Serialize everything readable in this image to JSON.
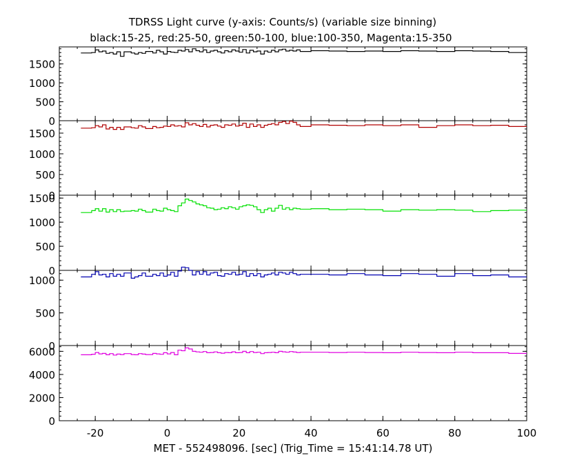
{
  "title": "TDRSS Light curve (y-axis: Counts/s) (variable size binning)",
  "subtitle": "black:15-25, red:25-50, green:50-100, blue:100-350, Magenta:15-350",
  "xlabel": "MET - 552498096. [sec] (Trig_Time = 15:41:14.78 UT)",
  "chart_data": [
    {
      "type": "line",
      "name": "black:15-25",
      "color": "#000000",
      "xlim": [
        -30,
        100
      ],
      "ylim": [
        0,
        1950
      ],
      "yticks": [
        0,
        500,
        1000,
        1500
      ],
      "x": [
        -24,
        -21,
        -20,
        -19,
        -18,
        -17,
        -16,
        -15,
        -14,
        -13,
        -12,
        -10,
        -9,
        -8,
        -7,
        -6,
        -4,
        -3,
        -2,
        -1,
        0,
        1,
        2,
        3,
        4,
        5,
        6,
        7,
        8,
        9,
        10,
        11,
        12,
        13,
        14,
        15,
        16,
        17,
        18,
        19,
        20,
        21,
        22,
        23,
        24,
        25,
        26,
        27,
        28,
        29,
        30,
        31,
        32,
        33,
        34,
        35,
        36,
        37,
        40,
        45,
        50,
        55,
        60,
        65,
        70,
        75,
        80,
        85,
        90,
        95,
        100
      ],
      "values": [
        1790,
        1800,
        1870,
        1820,
        1840,
        1780,
        1800,
        1760,
        1820,
        1700,
        1820,
        1790,
        1760,
        1800,
        1780,
        1830,
        1790,
        1860,
        1820,
        1760,
        1830,
        1810,
        1800,
        1860,
        1840,
        1880,
        1820,
        1900,
        1850,
        1820,
        1870,
        1800,
        1840,
        1860,
        1820,
        1790,
        1850,
        1820,
        1870,
        1840,
        1810,
        1880,
        1790,
        1860,
        1820,
        1840,
        1760,
        1840,
        1810,
        1860,
        1820,
        1870,
        1890,
        1840,
        1860,
        1840,
        1870,
        1830,
        1850,
        1840,
        1830,
        1840,
        1830,
        1850,
        1840,
        1830,
        1850,
        1840,
        1830,
        1800,
        1800
      ]
    },
    {
      "type": "line",
      "name": "red:25-50",
      "color": "#b00000",
      "xlim": [
        -30,
        100
      ],
      "ylim": [
        0,
        1800
      ],
      "yticks": [
        0,
        500,
        1000,
        1500
      ],
      "x": [
        -24,
        -21,
        -20,
        -19,
        -18,
        -17,
        -16,
        -15,
        -14,
        -13,
        -12,
        -10,
        -9,
        -8,
        -7,
        -6,
        -4,
        -3,
        -2,
        -1,
        0,
        1,
        2,
        3,
        4,
        5,
        6,
        7,
        8,
        9,
        10,
        11,
        12,
        13,
        14,
        15,
        16,
        17,
        18,
        19,
        20,
        21,
        22,
        23,
        24,
        25,
        26,
        27,
        28,
        29,
        30,
        31,
        32,
        33,
        34,
        35,
        36,
        37,
        40,
        45,
        50,
        55,
        60,
        65,
        70,
        75,
        80,
        85,
        90,
        95,
        100
      ],
      "values": [
        1620,
        1630,
        1680,
        1650,
        1700,
        1600,
        1640,
        1590,
        1640,
        1590,
        1650,
        1630,
        1620,
        1680,
        1650,
        1610,
        1660,
        1630,
        1640,
        1670,
        1660,
        1700,
        1670,
        1680,
        1650,
        1750,
        1700,
        1730,
        1690,
        1660,
        1710,
        1650,
        1690,
        1700,
        1670,
        1640,
        1700,
        1690,
        1720,
        1670,
        1690,
        1740,
        1640,
        1720,
        1660,
        1700,
        1640,
        1690,
        1710,
        1730,
        1700,
        1760,
        1780,
        1730,
        1790,
        1760,
        1700,
        1660,
        1700,
        1690,
        1680,
        1700,
        1680,
        1700,
        1640,
        1680,
        1700,
        1680,
        1690,
        1660,
        1660
      ]
    },
    {
      "type": "line",
      "name": "green:50-100",
      "color": "#00e000",
      "xlim": [
        -30,
        100
      ],
      "ylim": [
        0,
        1560
      ],
      "yticks": [
        0,
        500,
        1000,
        1500
      ],
      "x": [
        -24,
        -21,
        -20,
        -19,
        -18,
        -17,
        -16,
        -15,
        -14,
        -13,
        -12,
        -10,
        -9,
        -8,
        -7,
        -6,
        -4,
        -3,
        -2,
        -1,
        0,
        1,
        2,
        3,
        4,
        5,
        6,
        7,
        8,
        9,
        10,
        11,
        12,
        13,
        14,
        15,
        16,
        17,
        18,
        19,
        20,
        21,
        22,
        23,
        24,
        25,
        26,
        27,
        28,
        29,
        30,
        31,
        32,
        33,
        34,
        35,
        36,
        37,
        40,
        45,
        50,
        55,
        60,
        65,
        70,
        75,
        80,
        85,
        90,
        95,
        100
      ],
      "values": [
        1200,
        1240,
        1280,
        1230,
        1280,
        1210,
        1260,
        1220,
        1260,
        1220,
        1230,
        1240,
        1230,
        1270,
        1240,
        1210,
        1270,
        1240,
        1230,
        1290,
        1260,
        1240,
        1220,
        1340,
        1400,
        1480,
        1450,
        1420,
        1380,
        1360,
        1340,
        1300,
        1290,
        1260,
        1270,
        1300,
        1280,
        1320,
        1300,
        1270,
        1320,
        1340,
        1360,
        1350,
        1320,
        1260,
        1200,
        1260,
        1290,
        1230,
        1290,
        1350,
        1270,
        1300,
        1260,
        1290,
        1280,
        1270,
        1280,
        1260,
        1270,
        1260,
        1230,
        1260,
        1250,
        1260,
        1250,
        1220,
        1240,
        1250,
        1250
      ]
    },
    {
      "type": "line",
      "name": "blue:100-350",
      "color": "#0000b0",
      "xlim": [
        -30,
        100
      ],
      "ylim": [
        0,
        1150
      ],
      "yticks": [
        0,
        500,
        1000
      ],
      "x": [
        -24,
        -21,
        -20,
        -19,
        -18,
        -17,
        -16,
        -15,
        -14,
        -13,
        -12,
        -10,
        -9,
        -8,
        -7,
        -6,
        -4,
        -3,
        -2,
        -1,
        0,
        1,
        2,
        3,
        4,
        5,
        6,
        7,
        8,
        9,
        10,
        11,
        12,
        13,
        14,
        15,
        16,
        17,
        18,
        19,
        20,
        21,
        22,
        23,
        24,
        25,
        26,
        27,
        28,
        29,
        30,
        31,
        32,
        33,
        34,
        35,
        36,
        37,
        40,
        45,
        50,
        55,
        60,
        65,
        70,
        75,
        80,
        85,
        90,
        95,
        100
      ],
      "values": [
        1050,
        1090,
        1130,
        1080,
        1090,
        1050,
        1100,
        1060,
        1090,
        1060,
        1110,
        1030,
        1050,
        1070,
        1110,
        1060,
        1090,
        1070,
        1110,
        1060,
        1080,
        1120,
        1060,
        1140,
        1200,
        1190,
        1150,
        1080,
        1130,
        1090,
        1130,
        1080,
        1110,
        1120,
        1070,
        1060,
        1100,
        1090,
        1120,
        1080,
        1090,
        1130,
        1060,
        1100,
        1070,
        1100,
        1050,
        1080,
        1090,
        1110,
        1080,
        1120,
        1110,
        1090,
        1120,
        1100,
        1080,
        1090,
        1090,
        1080,
        1100,
        1080,
        1070,
        1100,
        1090,
        1060,
        1100,
        1070,
        1080,
        1050,
        1050
      ]
    },
    {
      "type": "line",
      "name": "Magenta:15-350",
      "color": "#e000e0",
      "xlim": [
        -30,
        100
      ],
      "ylim": [
        0,
        6500
      ],
      "yticks": [
        0,
        2000,
        4000,
        6000
      ],
      "x": [
        -24,
        -21,
        -20,
        -19,
        -18,
        -17,
        -16,
        -15,
        -14,
        -13,
        -12,
        -10,
        -9,
        -8,
        -7,
        -6,
        -4,
        -3,
        -2,
        -1,
        0,
        1,
        2,
        3,
        4,
        5,
        6,
        7,
        8,
        9,
        10,
        11,
        12,
        13,
        14,
        15,
        16,
        17,
        18,
        19,
        20,
        21,
        22,
        23,
        24,
        25,
        26,
        27,
        28,
        29,
        30,
        31,
        32,
        33,
        34,
        35,
        36,
        37,
        40,
        45,
        50,
        55,
        60,
        65,
        70,
        75,
        80,
        85,
        90,
        95,
        100
      ],
      "values": [
        5700,
        5750,
        5900,
        5780,
        5820,
        5700,
        5800,
        5680,
        5760,
        5720,
        5800,
        5720,
        5700,
        5800,
        5760,
        5720,
        5820,
        5780,
        5740,
        5880,
        5780,
        5900,
        5700,
        6100,
        6050,
        6300,
        6200,
        6000,
        5950,
        5920,
        5980,
        5880,
        5900,
        5950,
        5880,
        5840,
        5900,
        5880,
        5960,
        5880,
        5900,
        6000,
        5880,
        5980,
        5900,
        5920,
        5800,
        5880,
        5900,
        5920,
        5880,
        6000,
        5960,
        5920,
        5980,
        5940,
        5900,
        5920,
        5920,
        5900,
        5920,
        5900,
        5880,
        5920,
        5900,
        5880,
        5920,
        5880,
        5880,
        5820,
        5820
      ]
    }
  ],
  "xticks": [
    -20,
    0,
    20,
    40,
    60,
    80,
    100
  ],
  "minor_xtick_step": 5
}
